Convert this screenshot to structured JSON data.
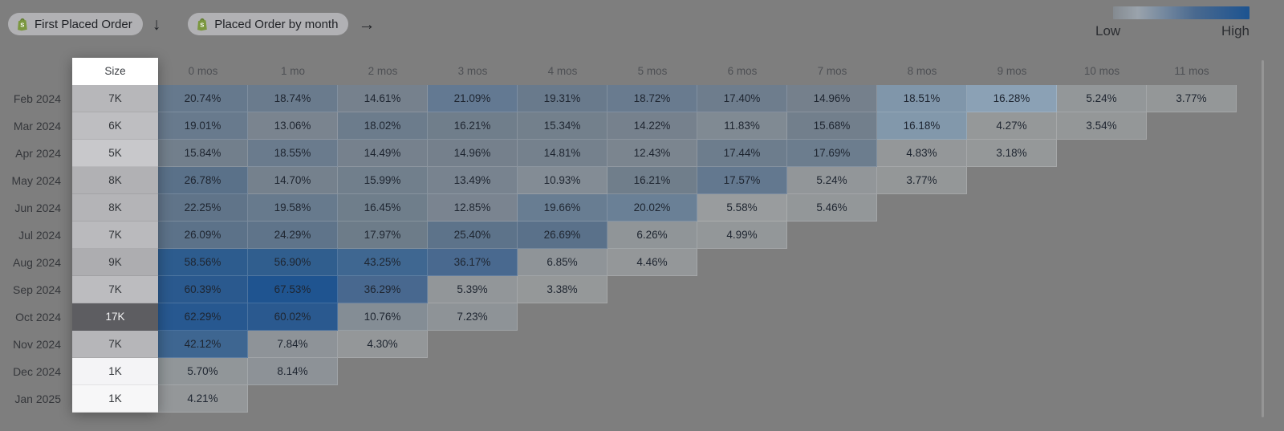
{
  "header": {
    "event1": "First Placed Order",
    "event2": "Placed Order by month",
    "arrow_down": "↓",
    "arrow_right": "→"
  },
  "legend": {
    "low": "Low",
    "high": "High",
    "gradient_start": "#9aa3ac",
    "gradient_end": "#1c5390"
  },
  "table": {
    "size_header": "Size"
  },
  "chart_data": {
    "type": "heatmap",
    "title": "First Placed Order → Placed Order by month (cohort retention)",
    "columns": [
      "0 mos",
      "1 mo",
      "2 mos",
      "3 mos",
      "4 mos",
      "5 mos",
      "6 mos",
      "7 mos",
      "8 mos",
      "9 mos",
      "10 mos",
      "11 mos"
    ],
    "legend": {
      "low": "Low",
      "high": "High"
    },
    "rows": [
      {
        "label": "Feb 2024",
        "size": "7K",
        "size_bg": "#b7b7ba",
        "size_fg": "#313438",
        "values": [
          20.74,
          18.74,
          14.61,
          21.09,
          19.31,
          18.72,
          17.4,
          14.96,
          18.51,
          16.28,
          5.24,
          3.77
        ],
        "colors": [
          "#66798d",
          "#6a7b8d",
          "#76818d",
          "#637992",
          "#697a8c",
          "#697b8f",
          "#6e7d8d",
          "#75808c",
          "#8096aa",
          "#8ba1b5",
          "#939799",
          "#949798"
        ]
      },
      {
        "label": "Mar 2024",
        "size": "6K",
        "size_bg": "#bebec1",
        "size_fg": "#313438",
        "values": [
          19.01,
          13.06,
          18.02,
          16.21,
          15.34,
          14.22,
          11.83,
          15.68,
          16.18,
          4.27,
          3.54,
          null
        ],
        "colors": [
          "#687a8d",
          "#7a848f",
          "#6c7c8c",
          "#707e8b",
          "#73808c",
          "#76818d",
          "#808a93",
          "#727f8c",
          "#8298ab",
          "#959899",
          "#949798",
          null
        ]
      },
      {
        "label": "Apr 2024",
        "size": "5K",
        "size_bg": "#c8c8cb",
        "size_fg": "#313438",
        "values": [
          15.84,
          18.55,
          14.49,
          14.96,
          14.81,
          12.43,
          17.44,
          17.69,
          4.83,
          3.18,
          null,
          null
        ],
        "colors": [
          "#727f8c",
          "#6a7b8d",
          "#76818d",
          "#75808c",
          "#75818d",
          "#7b858f",
          "#6d7d8d",
          "#6c7d8e",
          "#949799",
          "#959899",
          null,
          null
        ]
      },
      {
        "label": "May 2024",
        "size": "8K",
        "size_bg": "#b1b1b4",
        "size_fg": "#313438",
        "values": [
          26.78,
          14.7,
          15.99,
          13.49,
          10.93,
          16.21,
          17.57,
          5.24,
          3.77,
          null,
          null,
          null
        ],
        "colors": [
          "#5a7189",
          "#75818d",
          "#717f8c",
          "#78838f",
          "#838c95",
          "#707e8b",
          "#63788f",
          "#929699",
          "#949798",
          null,
          null,
          null
        ]
      },
      {
        "label": "Jun 2024",
        "size": "8K",
        "size_bg": "#b4b4b7",
        "size_fg": "#313438",
        "values": [
          22.25,
          19.58,
          16.45,
          12.85,
          19.66,
          20.02,
          5.58,
          5.46,
          null,
          null,
          null,
          null
        ],
        "colors": [
          "#607489",
          "#677a8d",
          "#6f7e8b",
          "#7a8490",
          "#687d92",
          "#6a8096",
          "#999c9e",
          "#939799",
          null,
          null,
          null,
          null
        ]
      },
      {
        "label": "Jul 2024",
        "size": "7K",
        "size_bg": "#bababd",
        "size_fg": "#313438",
        "values": [
          26.09,
          24.29,
          17.97,
          25.4,
          26.69,
          6.26,
          4.99,
          null,
          null,
          null,
          null,
          null
        ],
        "colors": [
          "#5c7289",
          "#5f748a",
          "#6d7c89",
          "#5d738a",
          "#5a718a",
          "#909598",
          "#939799",
          null,
          null,
          null,
          null,
          null
        ]
      },
      {
        "label": "Aug 2024",
        "size": "9K",
        "size_bg": "#adadb0",
        "size_fg": "#313438",
        "values": [
          58.56,
          56.9,
          43.25,
          36.17,
          6.85,
          4.46,
          null,
          null,
          null,
          null,
          null,
          null
        ],
        "colors": [
          "#2d5c8e",
          "#305e8e",
          "#3f6791",
          "#49698f",
          "#8f9498",
          "#949799",
          null,
          null,
          null,
          null,
          null,
          null
        ]
      },
      {
        "label": "Sep 2024",
        "size": "7K",
        "size_bg": "#bcbcbf",
        "size_fg": "#313438",
        "values": [
          60.39,
          67.53,
          36.29,
          5.39,
          3.38,
          null,
          null,
          null,
          null,
          null,
          null,
          null
        ],
        "colors": [
          "#2a598e",
          "#1f5490",
          "#48688f",
          "#929699",
          "#959899",
          null,
          null,
          null,
          null,
          null,
          null,
          null
        ]
      },
      {
        "label": "Oct 2024",
        "size": "17K",
        "size_bg": "#5d5d61",
        "size_fg": "#f2f2f3",
        "values": [
          62.29,
          60.02,
          10.76,
          7.23,
          null,
          null,
          null,
          null,
          null,
          null,
          null,
          null
        ],
        "colors": [
          "#275890",
          "#2a598f",
          "#848d95",
          "#8e9397",
          null,
          null,
          null,
          null,
          null,
          null,
          null,
          null
        ]
      },
      {
        "label": "Nov 2024",
        "size": "7K",
        "size_bg": "#b6b6b9",
        "size_fg": "#313438",
        "values": [
          42.12,
          7.84,
          4.3,
          null,
          null,
          null,
          null,
          null,
          null,
          null,
          null,
          null
        ],
        "colors": [
          "#3e6691",
          "#8e9398",
          "#949799",
          null,
          null,
          null,
          null,
          null,
          null,
          null,
          null,
          null
        ]
      },
      {
        "label": "Dec 2024",
        "size": "1K",
        "size_bg": "#f4f4f6",
        "size_fg": "#313438",
        "values": [
          5.7,
          8.14,
          null,
          null,
          null,
          null,
          null,
          null,
          null,
          null,
          null,
          null
        ],
        "colors": [
          "#919699",
          "#8d9297",
          null,
          null,
          null,
          null,
          null,
          null,
          null,
          null,
          null,
          null
        ]
      },
      {
        "label": "Jan 2025",
        "size": "1K",
        "size_bg": "#f7f7f8",
        "size_fg": "#313438",
        "values": [
          4.21,
          null,
          null,
          null,
          null,
          null,
          null,
          null,
          null,
          null,
          null,
          null
        ],
        "colors": [
          "#949799",
          null,
          null,
          null,
          null,
          null,
          null,
          null,
          null,
          null,
          null,
          null
        ]
      }
    ]
  }
}
